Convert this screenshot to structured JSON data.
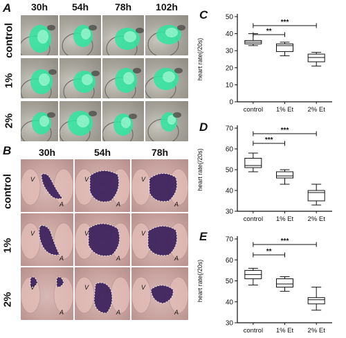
{
  "figure": {
    "panel_labels": {
      "A": "A",
      "B": "B",
      "C": "C",
      "D": "D",
      "E": "E"
    },
    "panel_a": {
      "columns": [
        "30h",
        "54h",
        "78h",
        "102h"
      ],
      "rows": [
        "control",
        "1%",
        "2%"
      ]
    },
    "panel_b": {
      "columns": [
        "30h",
        "54h",
        "78h"
      ],
      "rows": [
        "control",
        "1%",
        "2%"
      ],
      "ventricle_label": "V",
      "atrium_label": "A"
    },
    "colors": {
      "gfp_green": "#2ee6a0",
      "stain_purple": "#3a1f5c",
      "box_stroke": "#111111"
    }
  },
  "chart_data": [
    {
      "type": "box",
      "panel": "C",
      "ylabel": "heart rate(/20s)",
      "ylim": [
        0,
        50
      ],
      "yticks": [
        "0",
        "10",
        "20",
        "30",
        "40",
        "50"
      ],
      "categories": [
        "control",
        "1% Et",
        "2% Et"
      ],
      "boxes": [
        {
          "min": 33,
          "q1": 34,
          "median": 35,
          "q3": 36,
          "max": 40
        },
        {
          "min": 27,
          "q1": 29.5,
          "median": 33,
          "q3": 34,
          "max": 35
        },
        {
          "min": 21,
          "q1": 23.5,
          "median": 26,
          "q3": 28,
          "max": 29
        }
      ],
      "significance": [
        {
          "from": 0,
          "to": 2,
          "label": "***",
          "level": 1
        },
        {
          "from": 0,
          "to": 1,
          "label": "**",
          "level": 0
        }
      ]
    },
    {
      "type": "box",
      "panel": "D",
      "ylabel": "heart rate(/20s)",
      "ylim": [
        30,
        70
      ],
      "yticks": [
        "30",
        "40",
        "50",
        "60",
        "70"
      ],
      "categories": [
        "control",
        "1% Et",
        "2% Et"
      ],
      "boxes": [
        {
          "min": 49,
          "q1": 51,
          "median": 52,
          "q3": 55.5,
          "max": 58
        },
        {
          "min": 43,
          "q1": 46,
          "median": 47,
          "q3": 49,
          "max": 50
        },
        {
          "min": 33,
          "q1": 35,
          "median": 39,
          "q3": 40,
          "max": 43
        }
      ],
      "significance": [
        {
          "from": 0,
          "to": 2,
          "label": "***",
          "level": 1
        },
        {
          "from": 0,
          "to": 1,
          "label": "***",
          "level": 0
        }
      ]
    },
    {
      "type": "box",
      "panel": "E",
      "ylabel": "heart rate(/20s)",
      "ylim": [
        30,
        70
      ],
      "yticks": [
        "30",
        "40",
        "50",
        "60",
        "70"
      ],
      "categories": [
        "control",
        "1% Et",
        "2% Et"
      ],
      "boxes": [
        {
          "min": 48,
          "q1": 51,
          "median": 53,
          "q3": 55,
          "max": 56
        },
        {
          "min": 45,
          "q1": 47,
          "median": 48.5,
          "q3": 51,
          "max": 52
        },
        {
          "min": 36,
          "q1": 39,
          "median": 41,
          "q3": 42,
          "max": 47
        }
      ],
      "significance": [
        {
          "from": 0,
          "to": 2,
          "label": "***",
          "level": 1
        },
        {
          "from": 0,
          "to": 1,
          "label": "**",
          "level": 0
        }
      ]
    }
  ]
}
